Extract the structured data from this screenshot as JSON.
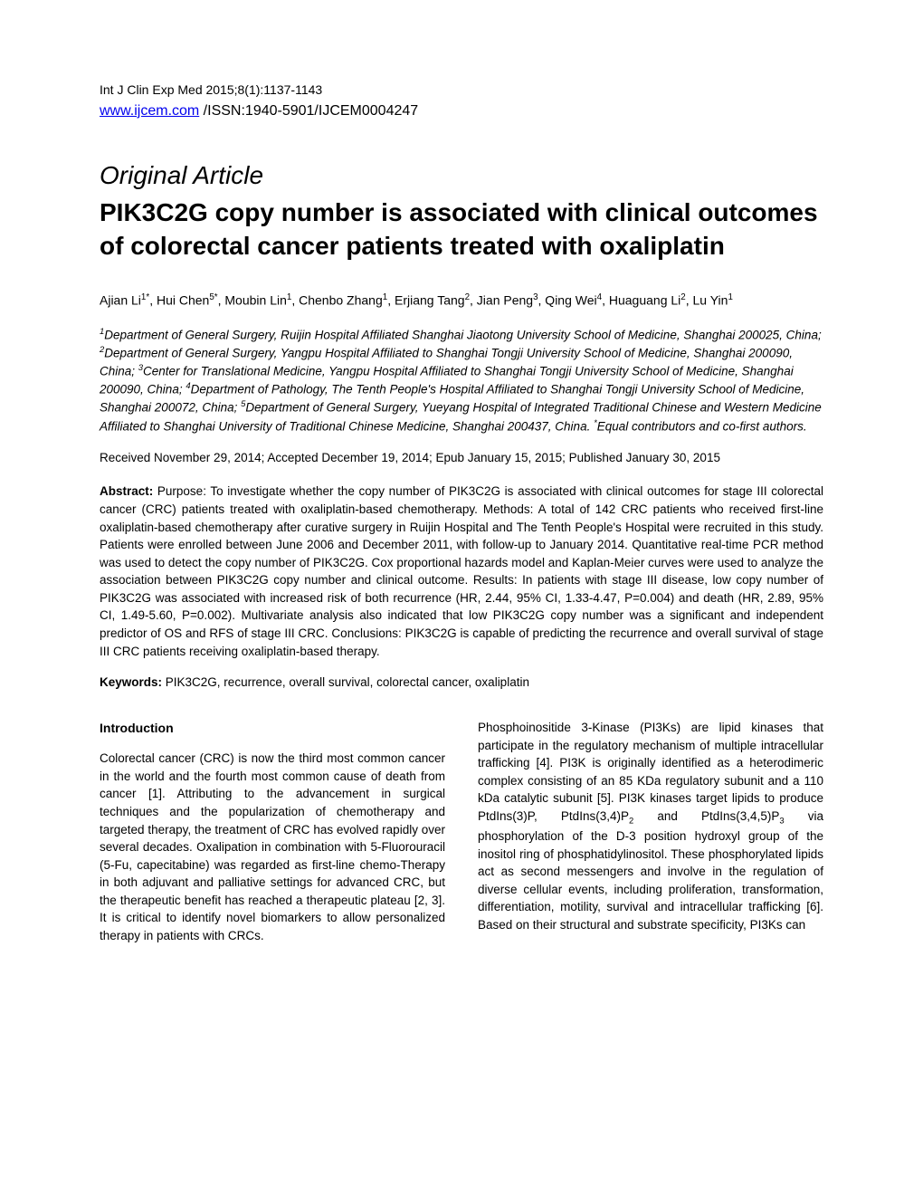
{
  "header": {
    "citation": "Int J Clin Exp Med 2015;8(1):1137-1143",
    "link_text": "www.ijcem.com",
    "issn_text": " /ISSN:1940-5901/IJCEM0004247"
  },
  "article": {
    "type": "Original Article",
    "title": "PIK3C2G copy number is associated with clinical outcomes of colorectal cancer patients treated with oxaliplatin"
  },
  "authors_html": "Ajian Li<sup>1*</sup>, Hui Chen<sup>5*</sup>, Moubin Lin<sup>1</sup>, Chenbo Zhang<sup>1</sup>, Erjiang Tang<sup>2</sup>, Jian Peng<sup>3</sup>, Qing Wei<sup>4</sup>, Huaguang Li<sup>2</sup>, Lu Yin<sup>1</sup>",
  "affiliations_html": "<sup>1</sup>Department of General Surgery, Ruijin Hospital Affiliated Shanghai Jiaotong University School of Medicine, Shanghai 200025, China; <sup>2</sup>Department of General Surgery, Yangpu Hospital Affiliated to Shanghai Tongji University School of Medicine, Shanghai 200090, China; <sup>3</sup>Center for Translational Medicine, Yangpu Hospital Affiliated to Shanghai Tongji University School of Medicine, Shanghai 200090, China; <sup>4</sup>Department of Pathology, The Tenth People's Hospital Affiliated to Shanghai Tongji University School of Medicine, Shanghai 200072, China; <sup>5</sup>Department of General Surgery, Yueyang Hospital of Integrated Traditional Chinese and Western Medicine Affiliated to Shanghai University of Traditional Chinese Medicine, Shanghai 200437, China. <sup>*</sup>Equal contributors and co-first authors.",
  "dates": "Received November 29, 2014; Accepted December 19, 2014; Epub January 15, 2015; Published January 30, 2015",
  "abstract": {
    "label": "Abstract:",
    "text": " Purpose: To investigate whether the copy number of PIK3C2G is associated with clinical outcomes for stage III colorectal cancer (CRC) patients treated with oxaliplatin-based chemotherapy. Methods: A total of 142 CRC patients who received first-line oxaliplatin-based chemotherapy after curative surgery in Ruijin Hospital and The Tenth People's Hospital were recruited in this study. Patients were enrolled between June 2006 and December 2011, with follow-up to January 2014. Quantitative real-time PCR method was used to detect the copy number of PIK3C2G. Cox proportional hazards model and Kaplan-Meier curves were used to analyze the association between PIK3C2G copy number and clinical outcome. Results: In patients with stage III disease, low copy number of PIK3C2G was associated with increased risk of both recurrence (HR, 2.44, 95% CI, 1.33-4.47, P=0.004) and death (HR, 2.89, 95% CI, 1.49-5.60, P=0.002). Multivariate analysis also indicated that low PIK3C2G copy number was a significant and independent predictor of OS and RFS of stage III CRC. Conclusions: PIK3C2G is capable of predicting the recurrence and overall survival of stage III CRC patients receiving oxaliplatin-based therapy."
  },
  "keywords": {
    "label": "Keywords:",
    "text": " PIK3C2G, recurrence, overall survival, colorectal cancer, oxaliplatin"
  },
  "intro": {
    "heading": "Introduction",
    "col1": "Colorectal cancer (CRC) is now the third most common cancer in the world and the fourth most common cause of death from cancer [1]. Attributing to the advancement in surgical techniques and the popularization of chemotherapy and targeted therapy, the treatment of CRC has evolved rapidly over several decades. Oxalipation in combination with 5-Fluorouracil (5-Fu, capecitabine) was regarded as first-line chemo-Therapy in both adjuvant and palliative settings for advanced CRC, but the therapeutic benefit has reached a therapeutic plateau [2, 3]. It is critical to identify novel biomarkers to allow personalized therapy in patients with CRCs.",
    "col2_html": "Phosphoinositide 3-Kinase (PI3Ks) are lipid kinases that participate in the regulatory mechanism of multiple intracellular trafficking [4]. PI3K is originally identified as a heterodimeric complex consisting of an 85 KDa regulatory subunit and a 110 kDa catalytic subunit [5]. PI3K kinases target lipids to produce PtdIns(3)P, PtdIns(3,4)P<sub>2</sub> and PtdIns(3,4,5)P<sub>3</sub> via phosphorylation of the D-3 position hydroxyl group of the inositol ring of phosphatidylinositol. These phosphorylated lipids act as second messengers and involve in the regulation of diverse cellular events, including proliferation, transformation, differentiation, motility, survival and intracellular trafficking [6]. Based on their structural and substrate specificity, PI3Ks can"
  },
  "colors": {
    "text": "#000000",
    "link": "#0000ee",
    "background": "#ffffff"
  },
  "typography": {
    "base_font": "Arial, Helvetica, sans-serif",
    "body_size_pt": 10,
    "title_size_pt": 21,
    "type_size_pt": 21
  }
}
